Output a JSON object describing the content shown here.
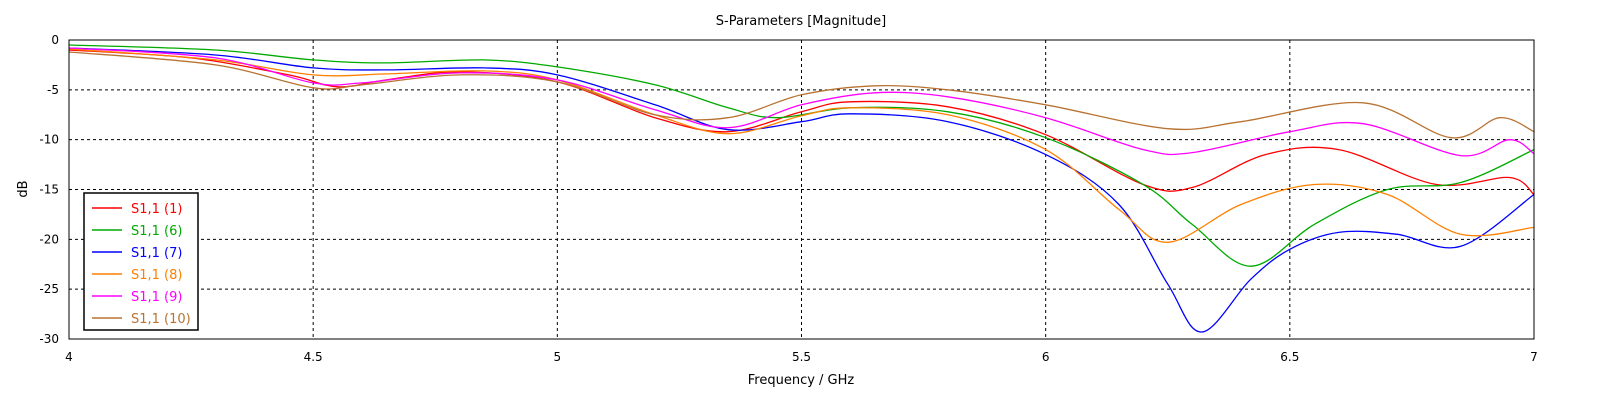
{
  "chart_data": {
    "type": "line",
    "title": "S-Parameters [Magnitude]",
    "xlabel": "Frequency / GHz",
    "ylabel": "dB",
    "xlim": [
      4,
      7
    ],
    "ylim": [
      -30,
      0
    ],
    "x_ticks": [
      4,
      4.5,
      5,
      5.5,
      6,
      6.5,
      7
    ],
    "x_tick_labels": [
      "4",
      "4.5",
      "5",
      "5.5",
      "6",
      "6.5",
      "7"
    ],
    "y_ticks": [
      0,
      -5,
      -10,
      -15,
      -20,
      -25,
      -30
    ],
    "y_tick_labels": [
      "0",
      "-5",
      "-10",
      "-15",
      "-20",
      "-25",
      "-30"
    ],
    "grid": true,
    "legend_position": "bottom-left",
    "series": [
      {
        "name": "S1,1 (1)",
        "color": "#ff0000",
        "points": [
          [
            4,
            -1.0
          ],
          [
            4.25,
            -1.8
          ],
          [
            4.45,
            -3.5
          ],
          [
            4.55,
            -4.7
          ],
          [
            4.65,
            -4.0
          ],
          [
            4.8,
            -3.2
          ],
          [
            5.0,
            -4.2
          ],
          [
            5.2,
            -7.8
          ],
          [
            5.35,
            -9.2
          ],
          [
            5.5,
            -7.2
          ],
          [
            5.6,
            -6.2
          ],
          [
            5.8,
            -6.7
          ],
          [
            6.0,
            -9.5
          ],
          [
            6.2,
            -14.5
          ],
          [
            6.3,
            -14.8
          ],
          [
            6.45,
            -11.5
          ],
          [
            6.6,
            -11.0
          ],
          [
            6.8,
            -14.5
          ],
          [
            6.95,
            -13.8
          ],
          [
            7.0,
            -15.5
          ]
        ]
      },
      {
        "name": "S1,1 (6)",
        "color": "#00aa00",
        "points": [
          [
            4,
            -0.5
          ],
          [
            4.3,
            -1.0
          ],
          [
            4.5,
            -2.0
          ],
          [
            4.65,
            -2.3
          ],
          [
            4.85,
            -2.0
          ],
          [
            5.0,
            -2.7
          ],
          [
            5.2,
            -4.5
          ],
          [
            5.35,
            -6.8
          ],
          [
            5.45,
            -7.8
          ],
          [
            5.6,
            -6.8
          ],
          [
            5.8,
            -7.2
          ],
          [
            6.0,
            -9.8
          ],
          [
            6.2,
            -14.5
          ],
          [
            6.3,
            -18.5
          ],
          [
            6.42,
            -22.7
          ],
          [
            6.55,
            -18.5
          ],
          [
            6.7,
            -15.0
          ],
          [
            6.85,
            -14.3
          ],
          [
            7.0,
            -11.0
          ]
        ]
      },
      {
        "name": "S1,1 (7)",
        "color": "#0000ff",
        "points": [
          [
            4,
            -0.8
          ],
          [
            4.3,
            -1.5
          ],
          [
            4.5,
            -2.8
          ],
          [
            4.65,
            -3.0
          ],
          [
            4.85,
            -2.8
          ],
          [
            5.0,
            -3.5
          ],
          [
            5.2,
            -6.5
          ],
          [
            5.35,
            -9.0
          ],
          [
            5.5,
            -8.2
          ],
          [
            5.6,
            -7.4
          ],
          [
            5.8,
            -8.2
          ],
          [
            6.0,
            -11.5
          ],
          [
            6.15,
            -16.5
          ],
          [
            6.25,
            -24.5
          ],
          [
            6.32,
            -29.3
          ],
          [
            6.42,
            -24.0
          ],
          [
            6.5,
            -21.0
          ],
          [
            6.6,
            -19.3
          ],
          [
            6.72,
            -19.5
          ],
          [
            6.85,
            -20.7
          ],
          [
            7.0,
            -15.5
          ]
        ]
      },
      {
        "name": "S1,1 (8)",
        "color": "#ff8000",
        "points": [
          [
            4,
            -0.9
          ],
          [
            4.3,
            -2.0
          ],
          [
            4.5,
            -3.5
          ],
          [
            4.65,
            -3.4
          ],
          [
            4.85,
            -3.1
          ],
          [
            5.0,
            -4.0
          ],
          [
            5.2,
            -7.5
          ],
          [
            5.35,
            -9.4
          ],
          [
            5.5,
            -7.6
          ],
          [
            5.6,
            -6.8
          ],
          [
            5.8,
            -7.5
          ],
          [
            6.0,
            -11.0
          ],
          [
            6.15,
            -17.0
          ],
          [
            6.25,
            -20.3
          ],
          [
            6.4,
            -16.5
          ],
          [
            6.55,
            -14.5
          ],
          [
            6.7,
            -15.5
          ],
          [
            6.85,
            -19.5
          ],
          [
            7.0,
            -18.8
          ]
        ]
      },
      {
        "name": "S1,1 (9)",
        "color": "#ff00ff",
        "points": [
          [
            4,
            -0.8
          ],
          [
            4.3,
            -1.8
          ],
          [
            4.5,
            -4.3
          ],
          [
            4.6,
            -4.3
          ],
          [
            4.8,
            -3.3
          ],
          [
            5.0,
            -4.0
          ],
          [
            5.2,
            -7.0
          ],
          [
            5.35,
            -8.8
          ],
          [
            5.5,
            -6.5
          ],
          [
            5.65,
            -5.3
          ],
          [
            5.8,
            -5.7
          ],
          [
            6.0,
            -7.8
          ],
          [
            6.2,
            -11.0
          ],
          [
            6.3,
            -11.3
          ],
          [
            6.5,
            -9.2
          ],
          [
            6.65,
            -8.4
          ],
          [
            6.85,
            -11.6
          ],
          [
            6.95,
            -10.0
          ],
          [
            7.0,
            -11.4
          ]
        ]
      },
      {
        "name": "S1,1 (10)",
        "color": "#b87333",
        "points": [
          [
            4,
            -1.2
          ],
          [
            4.3,
            -2.5
          ],
          [
            4.5,
            -4.8
          ],
          [
            4.6,
            -4.5
          ],
          [
            4.8,
            -3.5
          ],
          [
            5.0,
            -4.2
          ],
          [
            5.2,
            -7.5
          ],
          [
            5.35,
            -7.8
          ],
          [
            5.5,
            -5.5
          ],
          [
            5.65,
            -4.6
          ],
          [
            5.8,
            -5.0
          ],
          [
            6.0,
            -6.5
          ],
          [
            6.25,
            -8.9
          ],
          [
            6.4,
            -8.2
          ],
          [
            6.65,
            -6.3
          ],
          [
            6.83,
            -9.8
          ],
          [
            6.93,
            -7.8
          ],
          [
            7.0,
            -9.2
          ]
        ]
      }
    ]
  }
}
